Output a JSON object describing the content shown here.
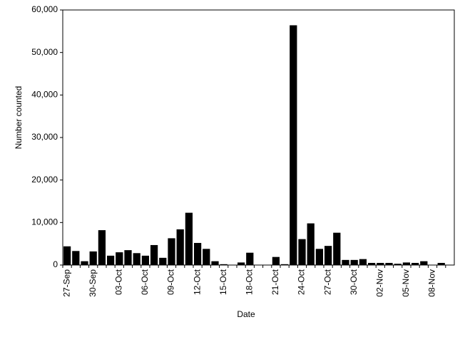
{
  "chart_data": {
    "type": "bar",
    "x_label": "Date",
    "y_label": "Number counted",
    "color": "#000000",
    "categories": [
      "27-Sep",
      null,
      null,
      "30-Sep",
      null,
      null,
      "03-Oct",
      null,
      null,
      "06-Oct",
      null,
      null,
      "09-Oct",
      null,
      null,
      "12-Oct",
      null,
      null,
      "15-Oct",
      null,
      null,
      "18-Oct",
      null,
      null,
      "21-Oct",
      null,
      null,
      "24-Oct",
      null,
      null,
      "27-Oct",
      null,
      null,
      "30-Oct",
      null,
      null,
      "02-Nov",
      null,
      null,
      "05-Nov",
      null,
      null,
      "08-Nov",
      null,
      null
    ],
    "values": [
      4400,
      3300,
      900,
      3200,
      8200,
      2200,
      3000,
      3500,
      2800,
      2200,
      4700,
      1700,
      6300,
      8400,
      12300,
      5200,
      3800,
      900,
      200,
      0,
      600,
      2900,
      0,
      0,
      1900,
      200,
      56400,
      6100,
      9800,
      3800,
      4500,
      7600,
      1200,
      1200,
      1400,
      500,
      500,
      500,
      300,
      600,
      500,
      900,
      0,
      500,
      0
    ],
    "ylim": [
      0,
      60000
    ],
    "yticks": [
      {
        "value": 0,
        "label": "0"
      },
      {
        "value": 10000,
        "label": "10,000"
      },
      {
        "value": 20000,
        "label": "20,000"
      },
      {
        "value": 30000,
        "label": "30,000"
      },
      {
        "value": 40000,
        "label": "40,000"
      },
      {
        "value": 50000,
        "label": "50,000"
      },
      {
        "value": 60000,
        "label": "60,000"
      }
    ],
    "grid": false
  }
}
